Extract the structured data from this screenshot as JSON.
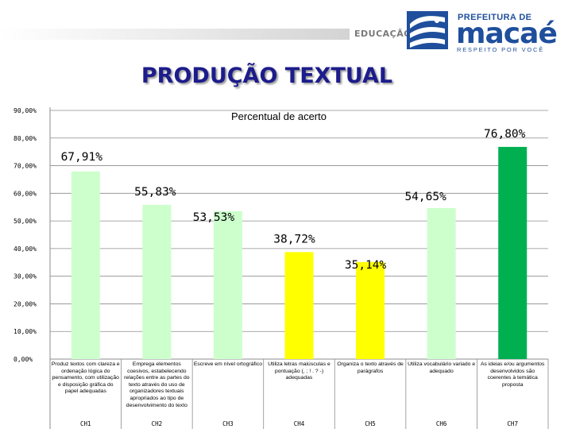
{
  "header": {
    "department": "EDUCAÇÃO",
    "prefeitura_label": "PREFEITURA DE",
    "city_name": "macaé",
    "slogan": "RESPEITO POR VOCÊ"
  },
  "colors": {
    "light_green": "#ccffcc",
    "dark_green": "#00b050",
    "yellow": "#ffff00",
    "title_blue": "#1c1c8c",
    "logo_blue": "#1f4f9c"
  },
  "chart_data": {
    "type": "bar",
    "title": "PRODUÇÃO TEXTUAL",
    "subtitle": "Percentual de acerto",
    "categories": [
      "CH1",
      "CH2",
      "CH3",
      "CH4",
      "CH5",
      "CH6",
      "CH7"
    ],
    "descriptions": [
      "Produz textos com clareza e ordenação lógica do pensamento, com utilização e disposição gráfica do papel adequadas",
      "Emprega elementos coesivos, estabelecendo relações entre as partes do texto através do uso de organizadores textuais apropriados ao tipo de desenvolvimento do texto",
      "Escreve em nível ortográfico",
      "Utiliza letras maiúsculas e pontuação (, ; ! . ? -) adequadas",
      "Organiza o texto através de parágrafos",
      "Utiliza vocabulário variado e adequado",
      "As ideias e/ou argumentos desenvolvidos são coerentes à temática proposta"
    ],
    "values": [
      67.91,
      55.83,
      53.53,
      38.72,
      35.14,
      54.65,
      76.8
    ],
    "value_labels": [
      "67,91%",
      "55,83%",
      "53,53%",
      "38,72%",
      "35,14%",
      "54,65%",
      "76,80%"
    ],
    "bar_colors": [
      "#ccffcc",
      "#ccffcc",
      "#ccffcc",
      "#ffff00",
      "#ffff00",
      "#ccffcc",
      "#00b050"
    ],
    "yticks": [
      "0,00%",
      "10,00%",
      "20,00%",
      "30,00%",
      "40,00%",
      "50,00%",
      "60,00%",
      "70,00%",
      "80,00%",
      "90,00%"
    ],
    "ylim": [
      0,
      90
    ],
    "grid": true
  }
}
